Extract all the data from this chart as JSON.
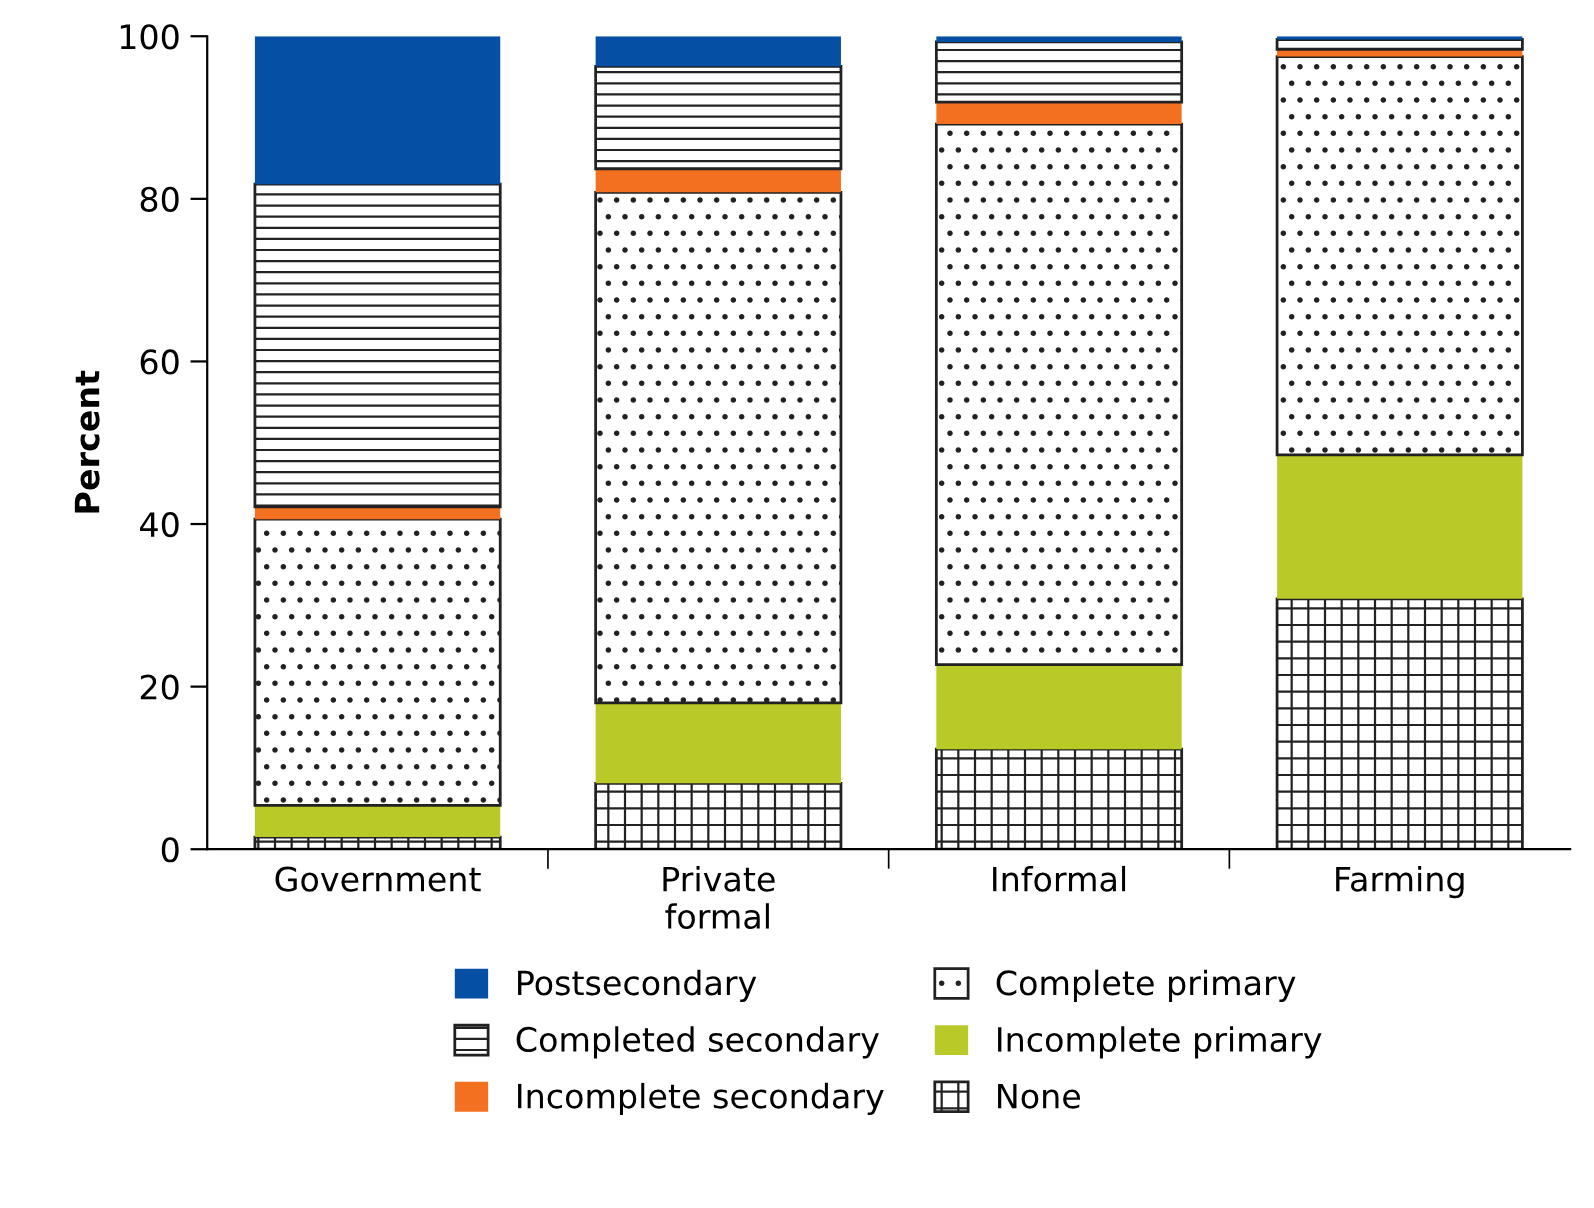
{
  "chart_data": {
    "type": "bar",
    "stacked": true,
    "ylabel": "Percent",
    "categories": [
      "Government",
      "Private\nformal",
      "Informal",
      "Farming"
    ],
    "ylim": [
      0,
      100
    ],
    "yticks": [
      0,
      20,
      40,
      60,
      80,
      100
    ],
    "grid": false,
    "legend": "bottom",
    "series": [
      {
        "name": "None",
        "color": "#222222",
        "values": [
          1.5,
          8.1,
          12.3,
          30.8
        ]
      },
      {
        "name": "Incomplete primary",
        "color": "#b9c928",
        "values": [
          3.9,
          9.9,
          10.4,
          17.7
        ]
      },
      {
        "name": "Complete primary",
        "color": "#222222",
        "values": [
          35.2,
          62.8,
          66.5,
          49.0
        ]
      },
      {
        "name": "Incomplete secondary",
        "color": "#f37021",
        "values": [
          1.5,
          2.9,
          2.7,
          0.9
        ]
      },
      {
        "name": "Completed secondary",
        "color": "#222222",
        "values": [
          39.7,
          12.6,
          7.4,
          1.2
        ]
      },
      {
        "name": "Postsecondary",
        "color": "#0550a4",
        "values": [
          18.2,
          3.7,
          0.7,
          0.4
        ]
      }
    ]
  }
}
